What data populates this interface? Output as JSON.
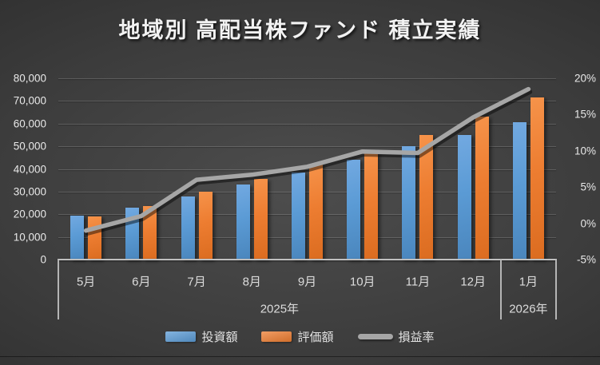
{
  "title": "地域別 高配当株ファンド 積立実績",
  "colors": {
    "invest_blue": "#5B9BD5",
    "value_orange": "#ED7D31",
    "rate_gray": "#A6A6A6",
    "background_dark": "#3c3c3c"
  },
  "axes": {
    "left_ticks": [
      "80,000",
      "70,000",
      "60,000",
      "50,000",
      "40,000",
      "30,000",
      "20,000",
      "10,000",
      "0"
    ],
    "right_ticks": [
      "20%",
      "15%",
      "10%",
      "5%",
      "0%",
      "-5%"
    ]
  },
  "x_axis": {
    "months": [
      "5月",
      "6月",
      "7月",
      "8月",
      "9月",
      "10月",
      "11月",
      "12月",
      "1月"
    ],
    "year_groups": [
      {
        "label": "2025年",
        "span": 8
      },
      {
        "label": "2026年",
        "span": 1
      }
    ]
  },
  "legend": [
    {
      "label": "投資額",
      "type": "bar",
      "color": "#5B9BD5"
    },
    {
      "label": "評価額",
      "type": "bar",
      "color": "#ED7D31"
    },
    {
      "label": "損益率",
      "type": "line",
      "color": "#A6A6A6"
    }
  ],
  "chart_data": {
    "type": "bar+line combo",
    "title": "地域別 高配当株ファンド 積立実績",
    "categories": [
      "5月",
      "6月",
      "7月",
      "8月",
      "9月",
      "10月",
      "11月",
      "12月",
      "1月"
    ],
    "category_years": [
      "2025年",
      "2025年",
      "2025年",
      "2025年",
      "2025年",
      "2025年",
      "2025年",
      "2025年",
      "2026年"
    ],
    "series": [
      {
        "name": "投資額",
        "type": "bar",
        "axis": "left",
        "values": [
          19500,
          23000,
          28000,
          33000,
          38500,
          44000,
          50000,
          55000,
          60500
        ]
      },
      {
        "name": "評価額",
        "type": "bar",
        "axis": "left",
        "values": [
          19000,
          23500,
          30000,
          35500,
          42000,
          47000,
          55000,
          63000,
          71500
        ]
      },
      {
        "name": "損益率",
        "type": "line",
        "axis": "right",
        "values": [
          -1.0,
          1.0,
          6.0,
          6.7,
          7.8,
          9.9,
          9.7,
          14.6,
          18.5
        ]
      }
    ],
    "left_axis": {
      "min": 0,
      "max": 80000,
      "step": 10000
    },
    "right_axis": {
      "min": -5,
      "max": 20,
      "step": 5,
      "unit": "%"
    },
    "grid": true,
    "legend_position": "bottom"
  }
}
